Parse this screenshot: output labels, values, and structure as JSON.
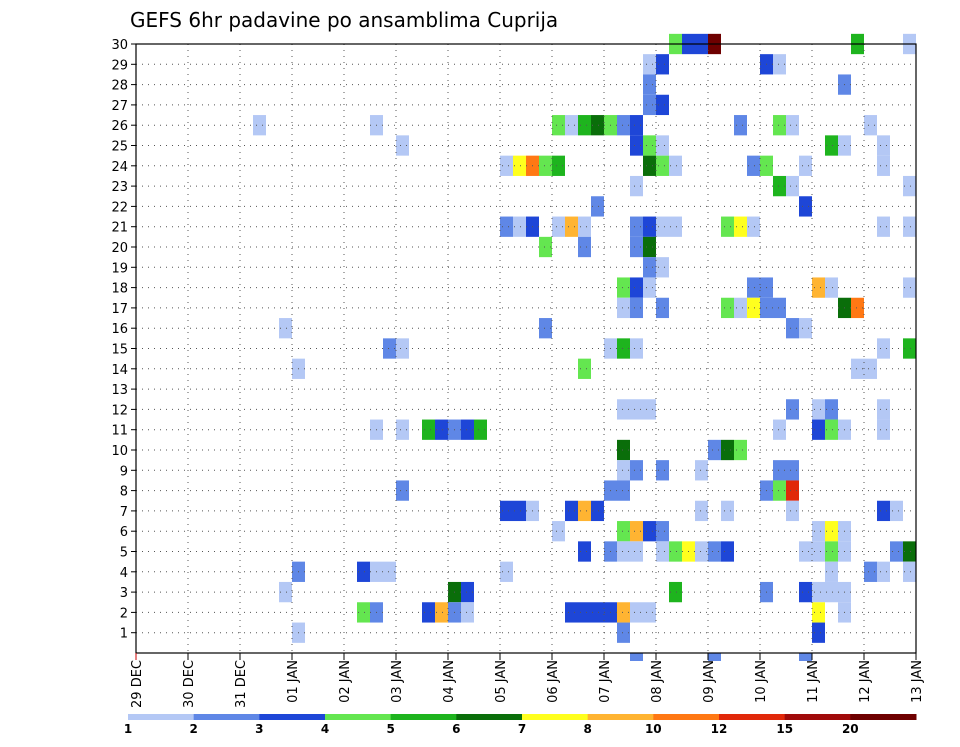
{
  "chart_data": {
    "type": "heatmap",
    "title": "GEFS 6hr padavine po ansamblima Cuprija",
    "xlabel": "",
    "ylabel": "",
    "x_tick_labels": [
      "29 DEC",
      "30 DEC",
      "31 DEC",
      "01 JAN",
      "02 JAN",
      "03 JAN",
      "04 JAN",
      "05 JAN",
      "06 JAN",
      "07 JAN",
      "08 JAN",
      "09 JAN",
      "10 JAN",
      "11 JAN",
      "12 JAN",
      "13 JAN"
    ],
    "y_ticks": [
      1,
      2,
      3,
      4,
      5,
      6,
      7,
      8,
      9,
      10,
      11,
      12,
      13,
      14,
      15,
      16,
      17,
      18,
      19,
      20,
      21,
      22,
      23,
      24,
      25,
      26,
      27,
      28,
      29,
      30
    ],
    "x_range_days": [
      0,
      15
    ],
    "steps_per_day": 4,
    "grid": true,
    "colorbar": {
      "labels": [
        "1",
        "2",
        "3",
        "4",
        "5",
        "6",
        "7",
        "8",
        "10",
        "12",
        "15",
        "20"
      ],
      "colors": [
        "#b4c8f5",
        "#5f87e6",
        "#1e46d7",
        "#64e650",
        "#1eb41e",
        "#0a6e0a",
        "#ffff1e",
        "#ffb432",
        "#ff7814",
        "#e1280a",
        "#a00a0a",
        "#6e0000"
      ]
    },
    "members": [
      {
        "member": 30,
        "cells": [
          [
            41,
            3
          ],
          [
            42,
            2
          ],
          [
            43,
            2
          ],
          [
            44,
            11
          ],
          [
            55,
            4
          ],
          [
            59,
            0
          ]
        ]
      },
      {
        "member": 29,
        "cells": [
          [
            39,
            0
          ],
          [
            40,
            2
          ],
          [
            48,
            2
          ],
          [
            49,
            0
          ]
        ]
      },
      {
        "member": 28,
        "cells": [
          [
            39,
            1
          ],
          [
            54,
            1
          ]
        ]
      },
      {
        "member": 27,
        "cells": [
          [
            39,
            1
          ],
          [
            40,
            2
          ]
        ]
      },
      {
        "member": 26,
        "cells": [
          [
            9,
            0
          ],
          [
            18,
            0
          ],
          [
            32,
            3
          ],
          [
            33,
            0
          ],
          [
            34,
            4
          ],
          [
            35,
            5
          ],
          [
            36,
            3
          ],
          [
            37,
            1
          ],
          [
            38,
            2
          ],
          [
            46,
            1
          ],
          [
            49,
            3
          ],
          [
            50,
            0
          ],
          [
            56,
            0
          ]
        ]
      },
      {
        "member": 25,
        "cells": [
          [
            20,
            0
          ],
          [
            38,
            2
          ],
          [
            39,
            3
          ],
          [
            40,
            0
          ],
          [
            53,
            4
          ],
          [
            54,
            0
          ],
          [
            57,
            0
          ]
        ]
      },
      {
        "member": 24,
        "cells": [
          [
            28,
            0
          ],
          [
            29,
            6
          ],
          [
            30,
            8
          ],
          [
            31,
            3
          ],
          [
            32,
            4
          ],
          [
            39,
            5
          ],
          [
            40,
            3
          ],
          [
            41,
            0
          ],
          [
            47,
            1
          ],
          [
            48,
            3
          ],
          [
            51,
            0
          ],
          [
            57,
            0
          ]
        ]
      },
      {
        "member": 23,
        "cells": [
          [
            38,
            0
          ],
          [
            49,
            4
          ],
          [
            50,
            0
          ],
          [
            59,
            0
          ]
        ]
      },
      {
        "member": 22,
        "cells": [
          [
            35,
            1
          ],
          [
            51,
            2
          ]
        ]
      },
      {
        "member": 21,
        "cells": [
          [
            28,
            1
          ],
          [
            29,
            0
          ],
          [
            30,
            2
          ],
          [
            32,
            0
          ],
          [
            33,
            7
          ],
          [
            34,
            0
          ],
          [
            38,
            1
          ],
          [
            39,
            2
          ],
          [
            40,
            0
          ],
          [
            41,
            0
          ],
          [
            45,
            3
          ],
          [
            46,
            6
          ],
          [
            47,
            0
          ],
          [
            57,
            0
          ],
          [
            59,
            0
          ]
        ]
      },
      {
        "member": 20,
        "cells": [
          [
            31,
            3
          ],
          [
            34,
            1
          ],
          [
            38,
            1
          ],
          [
            39,
            5
          ]
        ]
      },
      {
        "member": 19,
        "cells": [
          [
            39,
            1
          ],
          [
            40,
            0
          ]
        ]
      },
      {
        "member": 18,
        "cells": [
          [
            37,
            3
          ],
          [
            38,
            2
          ],
          [
            39,
            0
          ],
          [
            47,
            1
          ],
          [
            48,
            1
          ],
          [
            52,
            7
          ],
          [
            53,
            0
          ],
          [
            59,
            0
          ]
        ]
      },
      {
        "member": 17,
        "cells": [
          [
            37,
            0
          ],
          [
            38,
            1
          ],
          [
            40,
            1
          ],
          [
            45,
            3
          ],
          [
            46,
            0
          ],
          [
            47,
            6
          ],
          [
            48,
            1
          ],
          [
            49,
            1
          ],
          [
            54,
            5
          ],
          [
            55,
            8
          ]
        ]
      },
      {
        "member": 16,
        "cells": [
          [
            11,
            0
          ],
          [
            31,
            1
          ],
          [
            50,
            1
          ],
          [
            51,
            0
          ]
        ]
      },
      {
        "member": 15,
        "cells": [
          [
            19,
            1
          ],
          [
            20,
            0
          ],
          [
            36,
            0
          ],
          [
            37,
            4
          ],
          [
            38,
            0
          ],
          [
            57,
            0
          ],
          [
            59,
            4
          ]
        ]
      },
      {
        "member": 14,
        "cells": [
          [
            12,
            0
          ],
          [
            34,
            3
          ],
          [
            55,
            0
          ],
          [
            56,
            0
          ]
        ]
      },
      {
        "member": 13,
        "cells": []
      },
      {
        "member": 12,
        "cells": [
          [
            37,
            0
          ],
          [
            38,
            0
          ],
          [
            39,
            0
          ],
          [
            50,
            1
          ],
          [
            52,
            0
          ],
          [
            53,
            1
          ],
          [
            57,
            0
          ]
        ]
      },
      {
        "member": 11,
        "cells": [
          [
            18,
            0
          ],
          [
            20,
            0
          ],
          [
            22,
            4
          ],
          [
            23,
            2
          ],
          [
            24,
            1
          ],
          [
            25,
            2
          ],
          [
            26,
            4
          ],
          [
            49,
            0
          ],
          [
            52,
            2
          ],
          [
            53,
            3
          ],
          [
            54,
            0
          ],
          [
            57,
            0
          ]
        ]
      },
      {
        "member": 10,
        "cells": [
          [
            37,
            5
          ],
          [
            44,
            1
          ],
          [
            45,
            5
          ],
          [
            46,
            3
          ]
        ]
      },
      {
        "member": 9,
        "cells": [
          [
            37,
            0
          ],
          [
            38,
            1
          ],
          [
            40,
            1
          ],
          [
            43,
            0
          ],
          [
            49,
            1
          ],
          [
            50,
            1
          ]
        ]
      },
      {
        "member": 8,
        "cells": [
          [
            20,
            1
          ],
          [
            36,
            1
          ],
          [
            37,
            1
          ],
          [
            48,
            1
          ],
          [
            49,
            3
          ],
          [
            50,
            9
          ]
        ]
      },
      {
        "member": 7,
        "cells": [
          [
            28,
            2
          ],
          [
            29,
            2
          ],
          [
            30,
            0
          ],
          [
            33,
            2
          ],
          [
            34,
            7
          ],
          [
            35,
            2
          ],
          [
            43,
            0
          ],
          [
            45,
            0
          ],
          [
            50,
            0
          ],
          [
            57,
            2
          ],
          [
            58,
            0
          ]
        ]
      },
      {
        "member": 6,
        "cells": [
          [
            32,
            0
          ],
          [
            37,
            3
          ],
          [
            38,
            7
          ],
          [
            39,
            2
          ],
          [
            40,
            1
          ],
          [
            52,
            0
          ],
          [
            53,
            6
          ],
          [
            54,
            0
          ]
        ]
      },
      {
        "member": 5,
        "cells": [
          [
            34,
            2
          ],
          [
            36,
            1
          ],
          [
            37,
            0
          ],
          [
            38,
            0
          ],
          [
            40,
            0
          ],
          [
            41,
            3
          ],
          [
            42,
            6
          ],
          [
            43,
            0
          ],
          [
            44,
            1
          ],
          [
            45,
            2
          ],
          [
            51,
            0
          ],
          [
            52,
            0
          ],
          [
            53,
            3
          ],
          [
            54,
            0
          ],
          [
            58,
            1
          ],
          [
            59,
            5
          ]
        ]
      },
      {
        "member": 4,
        "cells": [
          [
            12,
            1
          ],
          [
            17,
            2
          ],
          [
            18,
            0
          ],
          [
            19,
            0
          ],
          [
            28,
            0
          ],
          [
            53,
            0
          ],
          [
            56,
            1
          ],
          [
            57,
            0
          ],
          [
            59,
            0
          ]
        ]
      },
      {
        "member": 3,
        "cells": [
          [
            11,
            0
          ],
          [
            24,
            5
          ],
          [
            25,
            2
          ],
          [
            41,
            4
          ],
          [
            48,
            1
          ],
          [
            51,
            2
          ],
          [
            52,
            0
          ],
          [
            53,
            0
          ],
          [
            54,
            0
          ]
        ]
      },
      {
        "member": 2,
        "cells": [
          [
            17,
            3
          ],
          [
            18,
            1
          ],
          [
            22,
            2
          ],
          [
            23,
            7
          ],
          [
            24,
            1
          ],
          [
            25,
            0
          ],
          [
            33,
            2
          ],
          [
            34,
            2
          ],
          [
            35,
            2
          ],
          [
            36,
            2
          ],
          [
            37,
            7
          ],
          [
            38,
            0
          ],
          [
            39,
            0
          ],
          [
            52,
            6
          ],
          [
            54,
            0
          ]
        ]
      },
      {
        "member": 1,
        "cells": [
          [
            12,
            0
          ],
          [
            37,
            1
          ],
          [
            52,
            2
          ]
        ]
      },
      {
        "member": 0,
        "cells": [
          [
            38,
            1
          ],
          [
            44,
            1
          ],
          [
            51,
            1
          ]
        ]
      }
    ]
  }
}
